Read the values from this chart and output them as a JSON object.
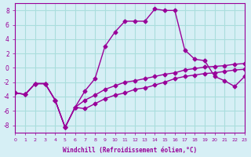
{
  "xlabel": "Windchill (Refroidissement éolien,°C)",
  "bg_color": "#d6eff5",
  "line_color": "#990099",
  "grid_color": "#aadddd",
  "xlim": [
    0,
    23
  ],
  "ylim": [
    -9,
    9
  ],
  "yticks": [
    -8,
    -6,
    -4,
    -2,
    0,
    2,
    4,
    6,
    8
  ],
  "xticks": [
    0,
    1,
    2,
    3,
    4,
    5,
    6,
    7,
    8,
    9,
    10,
    11,
    12,
    13,
    14,
    15,
    16,
    17,
    18,
    19,
    20,
    21,
    22,
    23
  ],
  "series": [
    [
      -3.5,
      -3.7,
      -2.2,
      -2.2,
      -4.5,
      -8.3,
      -5.5,
      -3.2,
      -1.5,
      3.0,
      5.0,
      6.5,
      6.5,
      6.5,
      8.2,
      8.0,
      8.0,
      2.5,
      1.2,
      1.0,
      -1.2,
      -1.8,
      -2.6,
      -1.2
    ],
    [
      -3.5,
      -3.7,
      -2.2,
      -2.2,
      -4.5,
      -8.3,
      -5.5,
      -5.7,
      -5.0,
      -4.3,
      -3.8,
      -3.5,
      -3.0,
      -2.8,
      -2.4,
      -2.0,
      -1.5,
      -1.2,
      -1.0,
      -0.8,
      -0.7,
      -0.5,
      -0.3,
      -0.2
    ],
    [
      -3.5,
      -3.7,
      -2.2,
      -2.2,
      -4.5,
      -8.3,
      -5.5,
      -4.5,
      -3.8,
      -3.0,
      -2.5,
      -2.0,
      -1.8,
      -1.5,
      -1.2,
      -0.9,
      -0.7,
      -0.3,
      -0.1,
      0.1,
      0.2,
      0.3,
      0.5,
      0.6
    ]
  ]
}
